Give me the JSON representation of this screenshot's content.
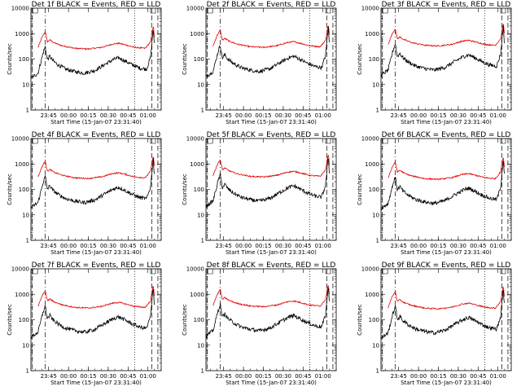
{
  "chart_data": [
    {
      "type": "line",
      "title": "Det 1f BLACK = Events, RED = LLD",
      "ylabel": "Counts/sec",
      "xlabel": "Start Time (15-Jan-07 23:31:40)"
    },
    {
      "type": "line",
      "title": "Det 2f BLACK = Events, RED = LLD",
      "ylabel": "Counts/sec",
      "xlabel": "Start Time (15-Jan-07 23:31:40)"
    },
    {
      "type": "line",
      "title": "Det 3f BLACK = Events, RED = LLD",
      "ylabel": "Counts/sec",
      "xlabel": "Start Time (15-Jan-07 23:31:40)"
    },
    {
      "type": "line",
      "title": "Det 4f BLACK = Events, RED = LLD",
      "ylabel": "Counts/sec",
      "xlabel": "Start Time (15-Jan-07 23:31:40)"
    },
    {
      "type": "line",
      "title": "Det 5f BLACK = Events, RED = LLD",
      "ylabel": "Counts/sec",
      "xlabel": "Start Time (15-Jan-07 23:31:40)"
    },
    {
      "type": "line",
      "title": "Det 6f BLACK = Events, RED = LLD",
      "ylabel": "Counts/sec",
      "xlabel": "Start Time (15-Jan-07 23:31:40)"
    },
    {
      "type": "line",
      "title": "Det 7f BLACK = Events, RED = LLD",
      "ylabel": "Counts/sec",
      "xlabel": "Start Time (15-Jan-07 23:31:40)"
    },
    {
      "type": "line",
      "title": "Det 8f BLACK = Events, RED = LLD",
      "ylabel": "Counts/sec",
      "xlabel": "Start Time (15-Jan-07 23:31:40)"
    },
    {
      "type": "line",
      "title": "Det 9f BLACK = Events, RED = LLD",
      "ylabel": "Counts/sec",
      "xlabel": "Start Time (15-Jan-07 23:31:40)"
    }
  ],
  "shared": {
    "xlim": [
      "23:31:40",
      "01:10:00"
    ],
    "x_ticks": [
      "23:45",
      "00:00",
      "00:15",
      "00:30",
      "00:45",
      "01:00"
    ],
    "y_scale": "log",
    "ylim": [
      1,
      10000
    ],
    "y_ticks": [
      "1",
      "10",
      "100",
      "1000",
      "10000"
    ],
    "colors": {
      "events": "#000000",
      "lld": "#e00000"
    },
    "events_profile": [
      [
        "23:31:40",
        22
      ],
      [
        "23:37:00",
        35
      ],
      [
        "23:41:00",
        230
      ],
      [
        "23:42:30",
        380
      ],
      [
        "23:44:00",
        120
      ],
      [
        "23:46:00",
        160
      ],
      [
        "23:48:00",
        110
      ],
      [
        "23:52:00",
        75
      ],
      [
        "23:58:00",
        50
      ],
      [
        "00:05:00",
        40
      ],
      [
        "00:12:00",
        35
      ],
      [
        "00:20:00",
        45
      ],
      [
        "00:28:00",
        80
      ],
      [
        "00:34:00",
        120
      ],
      [
        "00:38:00",
        140
      ],
      [
        "00:42:00",
        110
      ],
      [
        "00:48:00",
        75
      ],
      [
        "00:54:00",
        55
      ],
      [
        "00:59:00",
        50
      ],
      [
        "01:02:00",
        150
      ],
      [
        "01:04:00",
        2000
      ],
      [
        "01:05:00",
        300
      ]
    ],
    "lld_profile": [
      [
        "23:37:00",
        350
      ],
      [
        "23:40:00",
        900
      ],
      [
        "23:42:30",
        1500
      ],
      [
        "23:44:00",
        600
      ],
      [
        "23:46:00",
        700
      ],
      [
        "23:49:00",
        550
      ],
      [
        "23:55:00",
        420
      ],
      [
        "00:05:00",
        330
      ],
      [
        "00:15:00",
        310
      ],
      [
        "00:25:00",
        360
      ],
      [
        "00:33:00",
        480
      ],
      [
        "00:38:00",
        520
      ],
      [
        "00:43:00",
        450
      ],
      [
        "00:50:00",
        360
      ],
      [
        "00:58:00",
        330
      ],
      [
        "01:02:00",
        600
      ],
      [
        "01:04:00",
        2500
      ],
      [
        "01:05:00",
        800
      ]
    ]
  }
}
